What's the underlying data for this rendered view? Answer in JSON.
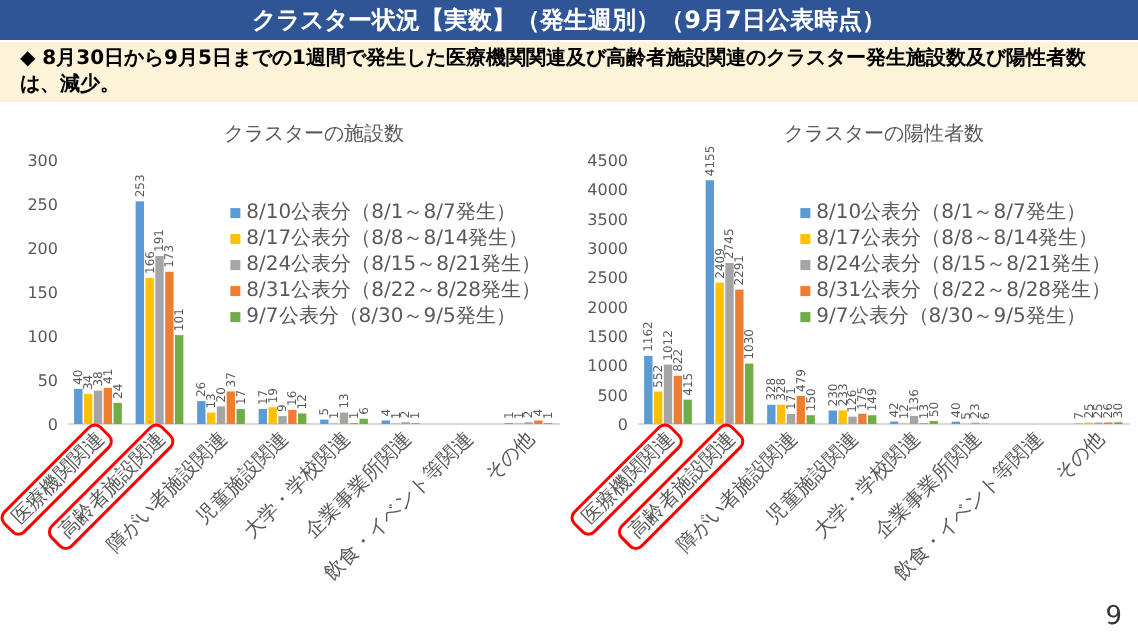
{
  "chart_data": [
    {
      "type": "other",
      "title": "クラスター状況【実数】（発生週別）（9月7日公表時点）",
      "annotations": [
        "◆ 8月30日から9月5日までの1週間で発生した医療機関関連及び高齢者施設関連のクラスター発生施設数及び陽性者数は、減少。",
        "9"
      ]
    },
    {
      "type": "bar",
      "title": "クラスターの施設数",
      "categories": [
        "医療機関関連",
        "高齢者施設関連",
        "障がい者施設関連",
        "児童施設関連",
        "大学・学校関連",
        "企業事業所関連",
        "飲食・イベント等関連",
        "その他"
      ],
      "series": [
        {
          "name": "8/10公表分（8/1～8/7発生）",
          "color": "#5b9bd5",
          "values": [
            40,
            253,
            26,
            17,
            5,
            4,
            null,
            1
          ]
        },
        {
          "name": "8/17公表分（8/8～8/14発生）",
          "color": "#ffc000",
          "values": [
            34,
            166,
            13,
            19,
            1,
            1,
            null,
            1
          ]
        },
        {
          "name": "8/24公表分（8/15～8/21発生）",
          "color": "#a5a5a5",
          "values": [
            38,
            191,
            20,
            9,
            13,
            2,
            null,
            2
          ]
        },
        {
          "name": "8/31公表分（8/22～8/28発生）",
          "color": "#ed7d31",
          "values": [
            41,
            173,
            37,
            16,
            1,
            1,
            null,
            4
          ]
        },
        {
          "name": "9/7公表分（8/30～9/5発生）",
          "color": "#70ad47",
          "values": [
            24,
            101,
            17,
            12,
            6,
            null,
            null,
            1
          ]
        }
      ],
      "ylim": [
        0,
        300
      ],
      "yticks": [
        0,
        50,
        100,
        150,
        200,
        250,
        300
      ],
      "data_labels": true,
      "legend": "right"
    },
    {
      "type": "bar",
      "title": "クラスターの陽性者数",
      "categories": [
        "医療機関関連",
        "高齢者施設関連",
        "障がい者施設関連",
        "児童施設関連",
        "大学・学校関連",
        "企業事業所関連",
        "飲食・イベント等関連",
        "その他"
      ],
      "series": [
        {
          "name": "8/10公表分（8/1～8/7発生）",
          "color": "#5b9bd5",
          "values": [
            1162,
            4155,
            328,
            230,
            42,
            40,
            null,
            7
          ]
        },
        {
          "name": "8/17公表分（8/8～8/14発生）",
          "color": "#ffc000",
          "values": [
            552,
            2409,
            328,
            233,
            12,
            5,
            null,
            25
          ]
        },
        {
          "name": "8/24公表分（8/15～8/21発生）",
          "color": "#a5a5a5",
          "values": [
            1012,
            2745,
            171,
            126,
            136,
            23,
            null,
            25
          ]
        },
        {
          "name": "8/31公表分（8/22～8/28発生）",
          "color": "#ed7d31",
          "values": [
            822,
            2291,
            479,
            175,
            13,
            6,
            null,
            26
          ]
        },
        {
          "name": "9/7公表分（8/30～9/5発生）",
          "color": "#70ad47",
          "values": [
            415,
            1030,
            150,
            149,
            50,
            null,
            null,
            30
          ]
        }
      ],
      "ylim": [
        0,
        4500
      ],
      "yticks": [
        0,
        500,
        1000,
        1500,
        2000,
        2500,
        3000,
        3500,
        4000,
        4500
      ],
      "data_labels": true,
      "legend": "right"
    }
  ]
}
